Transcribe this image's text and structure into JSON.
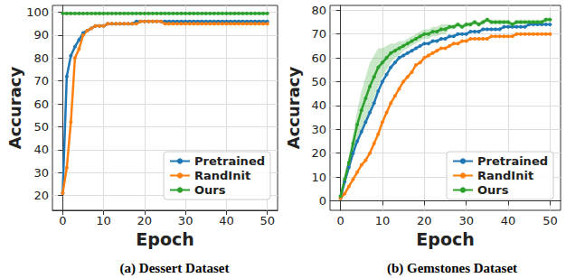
{
  "chart_data": [
    {
      "type": "line",
      "title": "(a) Dessert Dataset",
      "xlabel": "Epoch",
      "ylabel": "Accuracy",
      "x": [
        0,
        1,
        2,
        3,
        4,
        5,
        6,
        7,
        8,
        9,
        10,
        11,
        12,
        13,
        14,
        15,
        16,
        17,
        18,
        19,
        20,
        21,
        22,
        23,
        24,
        25,
        26,
        27,
        28,
        29,
        30,
        31,
        32,
        33,
        34,
        35,
        36,
        37,
        38,
        39,
        40,
        41,
        42,
        43,
        44,
        45,
        46,
        47,
        48,
        49,
        50
      ],
      "xlim": [
        -2.5,
        52.5
      ],
      "xticks": [
        0,
        10,
        20,
        30,
        40,
        50
      ],
      "ylim": [
        13.5,
        103
      ],
      "yticks": [
        20,
        30,
        40,
        50,
        60,
        70,
        80,
        90,
        100
      ],
      "grid": true,
      "legend": "lower right",
      "marker": "circle",
      "series": [
        {
          "name": "Pretrained",
          "color": "#1f77b4",
          "values": [
            21,
            72,
            81,
            85,
            88,
            91,
            92,
            93,
            94,
            94,
            94,
            95,
            95,
            95,
            95,
            95,
            95,
            95,
            96,
            96,
            96,
            96,
            96,
            96,
            96,
            96,
            96,
            96,
            96,
            96,
            96,
            96,
            96,
            96,
            96,
            96,
            96,
            96,
            96,
            96,
            96,
            96,
            96,
            96,
            96,
            96,
            96,
            96,
            96,
            96,
            96
          ]
        },
        {
          "name": "RandInit",
          "color": "#ff7f0e",
          "values": [
            21,
            32,
            52,
            80,
            84,
            90,
            92,
            93,
            94,
            94,
            94,
            95,
            95,
            95,
            95,
            95,
            95,
            95,
            95,
            96,
            96,
            96,
            96,
            96,
            96,
            95,
            95,
            95,
            95,
            95,
            95,
            95,
            95,
            95,
            95,
            95,
            95,
            95,
            95,
            95,
            95,
            95,
            95,
            95,
            95,
            95,
            95,
            95,
            95,
            95,
            95
          ]
        },
        {
          "name": "Ours",
          "color": "#2ca02c",
          "values": [
            99.5,
            99.5,
            99.5,
            99.5,
            99.5,
            99.5,
            99.5,
            99.5,
            99.5,
            99.5,
            99.5,
            99.5,
            99.5,
            99.5,
            99.5,
            99.5,
            99.5,
            99.5,
            99.5,
            99.5,
            99.5,
            99.5,
            99.5,
            99.5,
            99.5,
            99.5,
            99.5,
            99.5,
            99.5,
            99.5,
            99.5,
            99.5,
            99.5,
            99.5,
            99.5,
            99.5,
            99.5,
            99.5,
            99.5,
            99.5,
            99.5,
            99.5,
            99.5,
            99.5,
            99.5,
            99.5,
            99.5,
            99.5,
            99.5,
            99.5,
            99.5
          ]
        }
      ]
    },
    {
      "type": "line",
      "title": "(b) Gemstones Dataset",
      "xlabel": "Epoch",
      "ylabel": "Accuracy",
      "x": [
        0,
        1,
        2,
        3,
        4,
        5,
        6,
        7,
        8,
        9,
        10,
        11,
        12,
        13,
        14,
        15,
        16,
        17,
        18,
        19,
        20,
        21,
        22,
        23,
        24,
        25,
        26,
        27,
        28,
        29,
        30,
        31,
        32,
        33,
        34,
        35,
        36,
        37,
        38,
        39,
        40,
        41,
        42,
        43,
        44,
        45,
        46,
        47,
        48,
        49,
        50
      ],
      "xlim": [
        -2.5,
        52.5
      ],
      "xticks": [
        0,
        10,
        20,
        30,
        40,
        50
      ],
      "ylim": [
        -4,
        82
      ],
      "yticks": [
        0,
        10,
        20,
        30,
        40,
        50,
        60,
        70,
        80
      ],
      "grid": true,
      "legend": "lower right",
      "marker": "circle",
      "series": [
        {
          "name": "Pretrained",
          "color": "#1f77b4",
          "values": [
            1,
            8,
            14,
            20,
            25,
            29,
            33,
            37,
            41,
            46,
            50,
            53,
            56,
            58,
            60,
            61,
            62,
            63,
            64,
            65,
            66,
            66,
            67,
            67,
            68,
            68,
            69,
            69,
            70,
            70,
            70,
            71,
            71,
            71,
            72,
            72,
            72,
            72,
            72,
            73,
            73,
            73,
            73,
            73,
            73,
            74,
            74,
            74,
            74,
            74,
            74
          ]
        },
        {
          "name": "RandInit",
          "color": "#ff7f0e",
          "values": [
            1,
            3,
            6,
            9,
            12,
            15,
            17,
            20,
            24,
            28,
            33,
            37,
            41,
            44,
            47,
            50,
            52,
            54,
            57,
            58,
            60,
            61,
            62,
            63,
            64,
            64,
            65,
            66,
            66,
            67,
            67,
            68,
            68,
            68,
            68,
            68,
            69,
            69,
            69,
            69,
            69,
            69,
            70,
            70,
            70,
            70,
            70,
            70,
            70,
            70,
            70
          ]
        },
        {
          "name": "Ours",
          "color": "#2ca02c",
          "values": [
            2,
            9,
            16,
            24,
            32,
            38,
            43,
            48,
            52,
            56,
            58,
            60,
            62,
            63,
            64,
            65,
            66,
            67,
            68,
            69,
            70,
            70,
            71,
            71,
            72,
            72,
            73,
            73,
            74,
            73,
            74,
            74,
            75,
            74,
            75,
            76,
            75,
            75,
            75,
            75,
            75,
            74,
            75,
            75,
            75,
            75,
            75,
            75,
            75,
            76,
            76
          ],
          "lower": [
            1,
            7,
            13,
            20,
            26,
            30,
            34,
            38,
            43,
            48,
            52,
            55,
            58,
            60,
            61,
            63,
            64,
            65,
            66,
            67,
            68,
            68,
            69,
            69,
            70,
            70,
            72,
            72,
            73,
            72,
            73,
            73,
            74,
            73,
            74,
            75,
            74,
            74,
            74,
            74,
            74,
            73,
            74,
            74,
            74,
            74,
            74,
            74,
            74,
            75,
            75
          ],
          "upper": [
            3,
            11,
            19,
            28,
            38,
            46,
            52,
            58,
            61,
            64,
            64,
            65,
            66,
            66,
            67,
            67,
            68,
            69,
            70,
            71,
            72,
            72,
            73,
            73,
            74,
            74,
            74,
            74,
            75,
            74,
            75,
            75,
            76,
            75,
            76,
            77,
            76,
            76,
            76,
            76,
            76,
            75,
            76,
            76,
            76,
            76,
            76,
            76,
            76,
            77,
            77
          ]
        }
      ]
    }
  ]
}
